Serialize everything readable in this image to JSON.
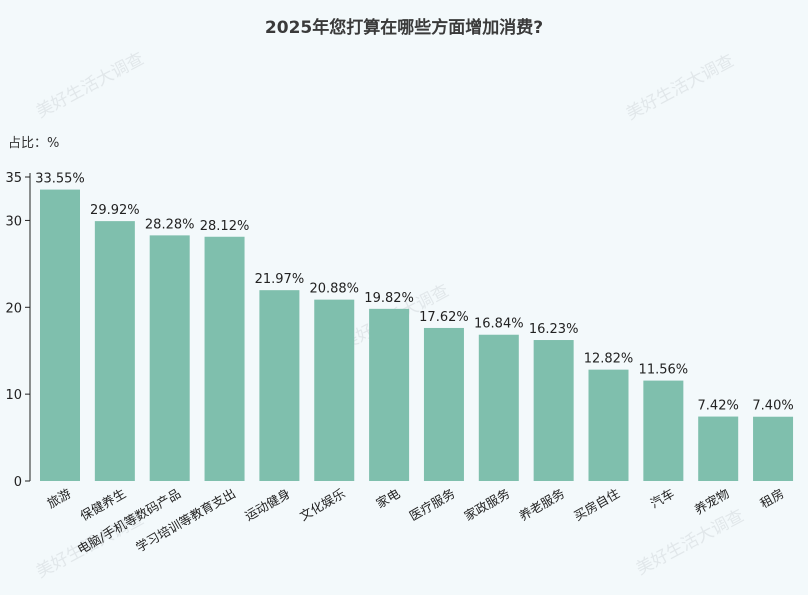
{
  "chart_data": {
    "type": "bar",
    "title": "2025年您打算在哪些方面增加消费?",
    "ylabel": "占比：%",
    "ylim": [
      0,
      35
    ],
    "yticks": [
      0,
      10,
      20,
      30,
      35
    ],
    "grid": false,
    "categories": [
      "旅游",
      "保健养生",
      "电脑/手机等数码产品",
      "学习培训等教育支出",
      "运动健身",
      "文化娱乐",
      "家电",
      "医疗服务",
      "家政服务",
      "养老服务",
      "买房自住",
      "汽车",
      "养宠物",
      "租房"
    ],
    "values": [
      33.55,
      29.92,
      28.28,
      28.12,
      21.97,
      20.88,
      19.82,
      17.62,
      16.84,
      16.23,
      12.82,
      11.56,
      7.42,
      7.4
    ],
    "value_labels": [
      "33.55%",
      "29.92%",
      "28.28%",
      "28.12%",
      "21.97%",
      "20.88%",
      "19.82%",
      "17.62%",
      "16.84%",
      "16.23%",
      "12.82%",
      "11.56%",
      "7.42%",
      "7.40%"
    ],
    "bar_color": "#7fbfad"
  },
  "watermark": "美好生活大调查"
}
